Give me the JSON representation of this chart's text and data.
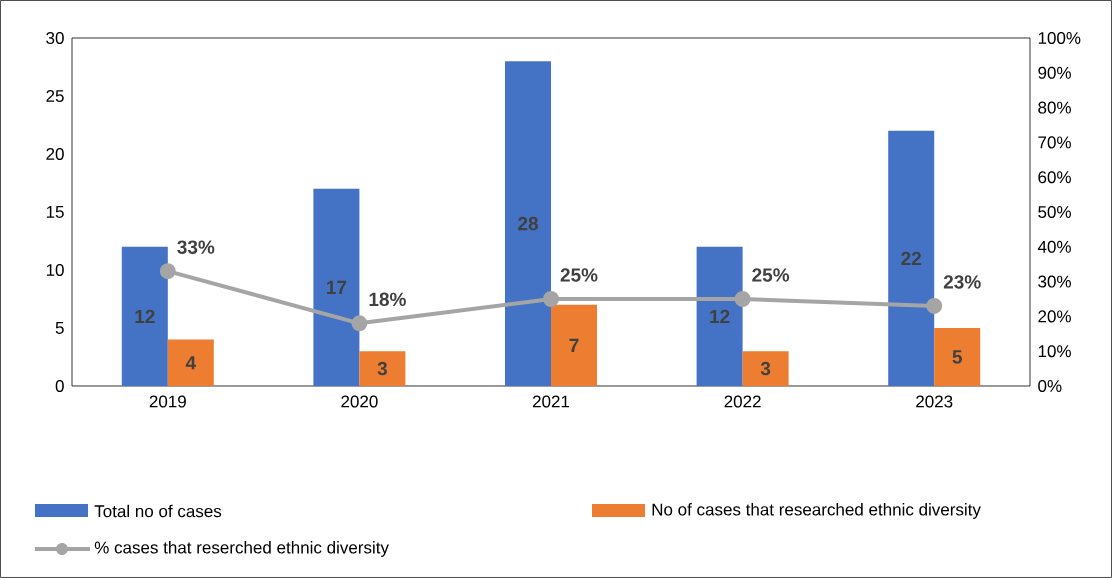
{
  "chart_data": {
    "type": "bar",
    "categories": [
      "2019",
      "2020",
      "2021",
      "2022",
      "2023"
    ],
    "series": [
      {
        "name": "Total no of cases",
        "color": "#4472c4",
        "values": [
          12,
          17,
          28,
          12,
          22
        ],
        "value_labels": [
          "12",
          "17",
          "28",
          "12",
          "22"
        ]
      },
      {
        "name": "No of cases that researched ethnic diversity",
        "color": "#ed7d31",
        "values": [
          4,
          3,
          7,
          3,
          5
        ],
        "value_labels": [
          "4",
          "3",
          "7",
          "3",
          "5"
        ]
      },
      {
        "name": "% cases that reserched ethnic diversity",
        "type": "line",
        "axis": "y2",
        "color": "#a5a5a5",
        "values": [
          33,
          18,
          25,
          25,
          23
        ],
        "value_labels": [
          "33%",
          "18%",
          "25%",
          "25%",
          "23%"
        ]
      }
    ],
    "ylim": [
      0,
      30
    ],
    "yticks": [
      0,
      5,
      10,
      15,
      20,
      25,
      30
    ],
    "y2lim": [
      0,
      100
    ],
    "y2ticks": [
      {
        "value": 0,
        "label": "0%"
      },
      {
        "value": 10,
        "label": "10%"
      },
      {
        "value": 20,
        "label": "20%"
      },
      {
        "value": 30,
        "label": "30%"
      },
      {
        "value": 40,
        "label": "40%"
      },
      {
        "value": 50,
        "label": "50%"
      },
      {
        "value": 60,
        "label": "60%"
      },
      {
        "value": 70,
        "label": "70%"
      },
      {
        "value": 80,
        "label": "80%"
      },
      {
        "value": 90,
        "label": "90%"
      },
      {
        "value": 100,
        "label": "100%"
      }
    ],
    "marker": "circle",
    "line_style": "solid",
    "legend": "bottom",
    "grid": false
  }
}
